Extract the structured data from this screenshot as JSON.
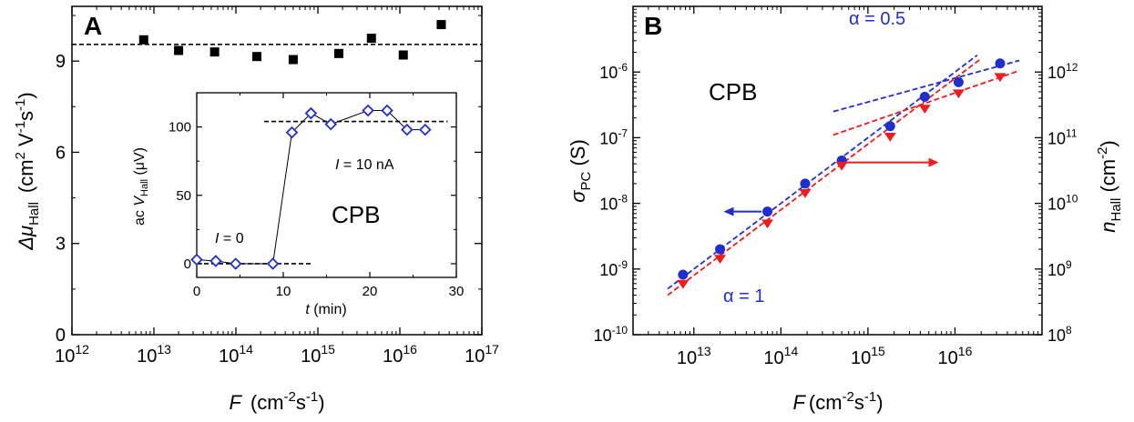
{
  "colors": {
    "black": "#000000",
    "blue": "#1f2fcf",
    "red": "#ee1c1c"
  },
  "chart_data": [
    {
      "panel_label": "A",
      "type": "scatter",
      "x_scale": "log",
      "xlim": [
        1000000000000.0,
        1e+17
      ],
      "ylim": [
        0,
        10.8
      ],
      "x_ticks": [
        {
          "value": 1000000000000.0,
          "base": "10",
          "exp": "12"
        },
        {
          "value": 10000000000000.0,
          "base": "10",
          "exp": "13"
        },
        {
          "value": 100000000000000.0,
          "base": "10",
          "exp": "14"
        },
        {
          "value": 1000000000000000.0,
          "base": "10",
          "exp": "15"
        },
        {
          "value": 1e+16,
          "base": "10",
          "exp": "16"
        },
        {
          "value": 1e+17,
          "base": "10",
          "exp": "17"
        }
      ],
      "y_ticks": [
        0,
        3,
        6,
        9
      ],
      "xlabel": {
        "sym": "F",
        "open": "(cm",
        "sup1": "-2",
        "mid": "s",
        "sup2": "-1",
        "close": ")"
      },
      "ylabel": {
        "sym": "Δμ",
        "sub": "Hall",
        "open": "(cm",
        "sup1": "2",
        "mid": " V",
        "sup2": "-1",
        "mid2": "s",
        "sup3": "-1",
        "close": ")"
      },
      "series": [
        {
          "marker": "square",
          "points": [
            {
              "x": 7500000000000.0,
              "y": 9.7
            },
            {
              "x": 20000000000000.0,
              "y": 9.35
            },
            {
              "x": 55000000000000.0,
              "y": 9.3
            },
            {
              "x": 180000000000000.0,
              "y": 9.15
            },
            {
              "x": 500000000000000.0,
              "y": 9.05
            },
            {
              "x": 1800000000000000.0,
              "y": 9.25
            },
            {
              "x": 4500000000000000.0,
              "y": 9.75
            },
            {
              "x": 1.1e+16,
              "y": 9.2
            },
            {
              "x": 3.2e+16,
              "y": 10.2
            }
          ]
        }
      ],
      "reference_line": {
        "y": 9.55,
        "style": "dashed"
      },
      "inset": {
        "type": "line",
        "xlim": [
          0,
          30
        ],
        "ylim": [
          -10,
          125
        ],
        "x_ticks": [
          0,
          10,
          20,
          30
        ],
        "y_ticks": [
          0,
          50,
          100
        ],
        "xlabel": {
          "sym": "t",
          "rest": " (min)"
        },
        "ylabel": {
          "pre": "ac ",
          "sym": "V",
          "sub": "Hall",
          "rest": " (μV)"
        },
        "points": [
          {
            "x": 0,
            "y": 3
          },
          {
            "x": 2.2,
            "y": 2
          },
          {
            "x": 4.5,
            "y": 0
          },
          {
            "x": 8.8,
            "y": 0
          },
          {
            "x": 11,
            "y": 96
          },
          {
            "x": 13.2,
            "y": 110
          },
          {
            "x": 15.5,
            "y": 102
          },
          {
            "x": 19.8,
            "y": 112
          },
          {
            "x": 22,
            "y": 112
          },
          {
            "x": 24.3,
            "y": 98
          },
          {
            "x": 26.4,
            "y": 98
          }
        ],
        "ref_lines": [
          {
            "x0": 0,
            "x1": 13.2,
            "y": 0
          },
          {
            "x0": 7.8,
            "x1": 29,
            "y": 104
          }
        ],
        "annotations": [
          {
            "sym": "I",
            "rest": " = 0"
          },
          {
            "sym": "I",
            "rest": " = 10 nA"
          },
          {
            "text": "CPB"
          }
        ]
      }
    },
    {
      "panel_label": "B",
      "type": "scatter",
      "x_scale": "log",
      "y_scale": "log",
      "xlim": [
        2000000000000.0,
        1e+17
      ],
      "ylim": [
        1e-10,
        1e-05
      ],
      "y2lim": [
        100000000.0,
        10000000000000.0
      ],
      "x_ticks": [
        {
          "value": 10000000000000.0,
          "base": "10",
          "exp": "13"
        },
        {
          "value": 100000000000000.0,
          "base": "10",
          "exp": "14"
        },
        {
          "value": 1000000000000000.0,
          "base": "10",
          "exp": "15"
        },
        {
          "value": 1e+16,
          "base": "10",
          "exp": "16"
        }
      ],
      "y_ticks": [
        {
          "value": 1e-10,
          "base": "10",
          "exp": "-10"
        },
        {
          "value": 1e-09,
          "base": "10",
          "exp": "-9"
        },
        {
          "value": 1e-08,
          "base": "10",
          "exp": "-8"
        },
        {
          "value": 1e-07,
          "base": "10",
          "exp": "-7"
        },
        {
          "value": 1e-06,
          "base": "10",
          "exp": "-6"
        }
      ],
      "y2_ticks": [
        {
          "value": 100000000.0,
          "base": "10",
          "exp": "8"
        },
        {
          "value": 1000000000.0,
          "base": "10",
          "exp": "9"
        },
        {
          "value": 10000000000.0,
          "base": "10",
          "exp": "10"
        },
        {
          "value": 100000000000.0,
          "base": "10",
          "exp": "11"
        },
        {
          "value": 1000000000000.0,
          "base": "10",
          "exp": "12"
        }
      ],
      "xlabel": {
        "sym": "F",
        "open": "(cm",
        "sup1": "-2",
        "mid": "s",
        "sup2": "-1",
        "close": ")"
      },
      "ylabel": {
        "sym": "σ",
        "sub": "PC",
        "rest": " (S)"
      },
      "y2label": {
        "sym": "n",
        "sub": "Hall",
        "open": " (cm",
        "sup": "-2",
        "close": ")"
      },
      "series": [
        {
          "name": "σPC",
          "axis": "left",
          "marker": "circle",
          "color": "#1f2fcf",
          "points": [
            {
              "x": 7500000000000.0,
              "y": 8.2e-10
            },
            {
              "x": 20000000000000.0,
              "y": 2e-09
            },
            {
              "x": 70000000000000.0,
              "y": 7.5e-09
            },
            {
              "x": 190000000000000.0,
              "y": 2e-08
            },
            {
              "x": 500000000000000.0,
              "y": 4.5e-08
            },
            {
              "x": 1800000000000000.0,
              "y": 1.5e-07
            },
            {
              "x": 4500000000000000.0,
              "y": 4.2e-07
            },
            {
              "x": 1.1e+16,
              "y": 7e-07
            },
            {
              "x": 3.3e+16,
              "y": 1.35e-06
            }
          ]
        },
        {
          "name": "nHall",
          "axis": "right",
          "marker": "triangle-down",
          "color": "#ee1c1c",
          "points": [
            {
              "x": 7500000000000.0,
              "y": 600000000.0
            },
            {
              "x": 20000000000000.0,
              "y": 1450000000.0
            },
            {
              "x": 70000000000000.0,
              "y": 5000000000.0
            },
            {
              "x": 190000000000000.0,
              "y": 14500000000.0
            },
            {
              "x": 500000000000000.0,
              "y": 38000000000.0
            },
            {
              "x": 1800000000000000.0,
              "y": 105000000000.0
            },
            {
              "x": 4500000000000000.0,
              "y": 280000000000.0
            },
            {
              "x": 1.1e+16,
              "y": 480000000000.0
            },
            {
              "x": 3.3e+16,
              "y": 850000000000.0
            }
          ]
        }
      ],
      "fit_lines": [
        {
          "axis": "left",
          "color": "#1f2fcf",
          "x0": 5000000000000.0,
          "y0": 5e-10,
          "x1": 1.8e+16,
          "y1": 1.8e-06
        },
        {
          "axis": "left",
          "color": "#1f2fcf",
          "x0": 400000000000000.0,
          "y0": 2.5e-07,
          "x1": 5.5e+16,
          "y1": 1.5e-06
        },
        {
          "axis": "right",
          "color": "#ee1c1c",
          "x0": 5000000000000.0,
          "y0": 400000000.0,
          "x1": 2e+16,
          "y1": 1600000000000.0
        },
        {
          "axis": "right",
          "color": "#ee1c1c",
          "x0": 400000000000000.0,
          "y0": 110000000000.0,
          "x1": 5.5e+16,
          "y1": 1050000000000.0
        }
      ],
      "arrows": [
        {
          "axis": "left",
          "color": "#1f2fcf",
          "x_from": 60000000000000.0,
          "x_to": 22000000000000.0,
          "y": 7.5e-09
        },
        {
          "axis": "right",
          "color": "#ee1c1c",
          "x_from": 550000000000000.0,
          "x_to": 6500000000000000.0,
          "y": 42000000000.0
        }
      ],
      "annotations": [
        {
          "text": "CPB"
        },
        {
          "text": "α = 0.5",
          "color": "#1f2fcf"
        },
        {
          "text": "α = 1",
          "color": "#1f2fcf"
        }
      ]
    }
  ]
}
